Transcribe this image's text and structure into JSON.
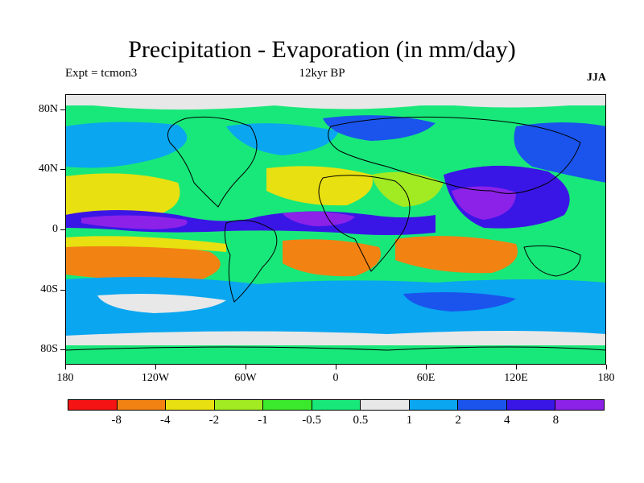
{
  "title": "Precipitation - Evaporation (in mm/day)",
  "experiment": "Expt = tcmon3",
  "period": "12kyr BP",
  "season": "JJA",
  "map": {
    "lat_labels": [
      "80N",
      "40N",
      "0",
      "40S",
      "80S"
    ],
    "lat_values": [
      80,
      40,
      0,
      -40,
      -80
    ],
    "lon_labels": [
      "180",
      "120W",
      "60W",
      "0",
      "60E",
      "120E",
      "180"
    ],
    "lon_values": [
      -180,
      -120,
      -60,
      0,
      60,
      120,
      180
    ],
    "lat_range": [
      -90,
      90
    ],
    "lon_range": [
      -180,
      180
    ]
  },
  "legend": {
    "labels": [
      "-8",
      "-4",
      "-2",
      "-1",
      "-0.5",
      "0.5",
      "1",
      "2",
      "4",
      "8"
    ],
    "colors": [
      "#f51414",
      "#f28212",
      "#e8e010",
      "#a2ea22",
      "#3ae82c",
      "#18e87a",
      "#e8e8e8",
      "#0aa6f0",
      "#1a54ec",
      "#3a16e6",
      "#8c22e8"
    ]
  },
  "colors": {
    "land_outline": "#000000",
    "frame": "#000000"
  }
}
